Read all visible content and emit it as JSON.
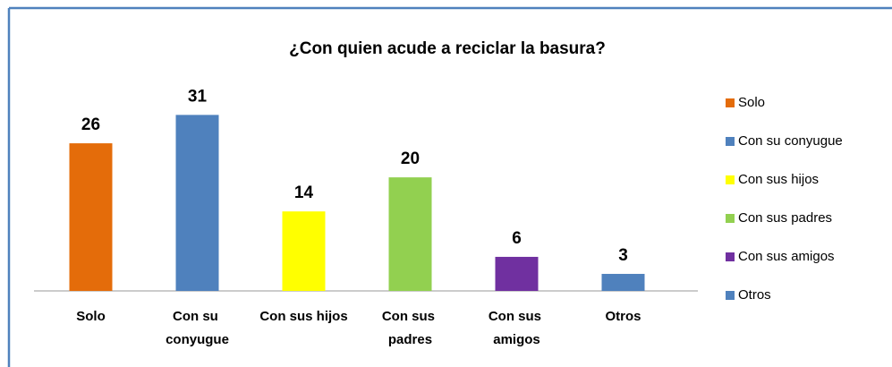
{
  "chart_data": {
    "type": "bar",
    "title": "¿Con quien acude a reciclar la basura?",
    "categories": [
      "Solo",
      "Con su conyugue",
      "Con sus hijos",
      "Con sus padres",
      "Con sus amigos",
      "Otros"
    ],
    "values": [
      26,
      31,
      14,
      20,
      6,
      3
    ],
    "colors": [
      "#e46c0a",
      "#4f81bd",
      "#ffff00",
      "#92d050",
      "#7030a0",
      "#4f81bd"
    ],
    "ylim": [
      0,
      35
    ],
    "legend": "right"
  }
}
